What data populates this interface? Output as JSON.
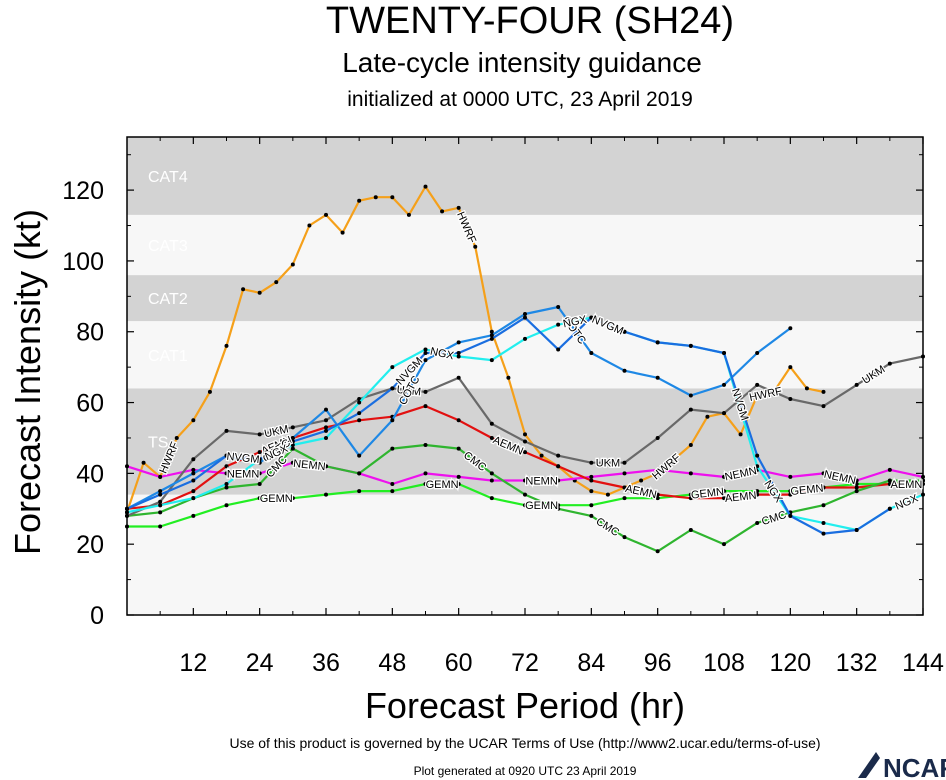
{
  "chart_data": {
    "type": "line",
    "title": "TWENTY-FOUR (SH24)",
    "subtitle": "Late-cycle intensity guidance",
    "subtitle2": "initialized at 0000 UTC, 23 April 2019",
    "xlabel": "Forecast Period (hr)",
    "ylabel": "Forecast Intensity (kt)",
    "xlim": [
      0,
      144
    ],
    "ylim": [
      0,
      135
    ],
    "xticks": [
      12,
      24,
      36,
      48,
      60,
      72,
      84,
      96,
      108,
      120,
      132,
      144
    ],
    "yticks": [
      0,
      20,
      40,
      60,
      80,
      100,
      120
    ],
    "bands": [
      {
        "label": "TS",
        "from": 34,
        "to": 64,
        "color": "#d3d3d3"
      },
      {
        "label": "CAT1",
        "from": 64,
        "to": 83,
        "color": "#f7f7f7"
      },
      {
        "label": "CAT2",
        "from": 83,
        "to": 96,
        "color": "#d3d3d3"
      },
      {
        "label": "CAT3",
        "from": 96,
        "to": 113,
        "color": "#f7f7f7"
      },
      {
        "label": "CAT4",
        "from": 113,
        "to": 135,
        "color": "#d3d3d3"
      }
    ],
    "below_band_color": "#f7f7f7",
    "series": [
      {
        "name": "HWRF",
        "color": "#f5a01a",
        "label_at": [
          3,
          21,
          33,
          39,
          53
        ],
        "x": [
          0,
          3,
          6,
          9,
          12,
          15,
          18,
          21,
          24,
          27,
          30,
          33,
          36,
          39,
          42,
          45,
          48,
          51,
          54,
          57,
          60,
          63,
          66,
          69,
          72,
          75,
          78,
          81,
          84,
          87,
          90,
          93,
          96,
          99,
          102,
          105,
          108,
          111,
          114,
          117,
          120,
          123,
          126
        ],
        "y": [
          29,
          43,
          39,
          50,
          55,
          63,
          76,
          92,
          91,
          94,
          99,
          110,
          113,
          108,
          117,
          118,
          118,
          113,
          121,
          114,
          115,
          104,
          80,
          67,
          51,
          45,
          42,
          38,
          35,
          34,
          36,
          38,
          40,
          44,
          48,
          56,
          57,
          51,
          62,
          63,
          70,
          64,
          63
        ]
      },
      {
        "name": "NEMN",
        "color": "#ee11ee",
        "label_at": [
          4,
          6,
          13,
          19,
          22,
          27,
          31
        ],
        "x": [
          0,
          6,
          12,
          18,
          24,
          30,
          36,
          42,
          48,
          54,
          60,
          66,
          72,
          78,
          84,
          90,
          96,
          102,
          108,
          114,
          120,
          126,
          132,
          138,
          144
        ],
        "y": [
          42,
          39,
          41,
          40,
          40,
          43,
          42,
          40,
          37,
          40,
          39,
          38,
          38,
          38,
          39,
          40,
          41,
          40,
          39,
          41,
          39,
          40,
          38,
          41,
          39
        ]
      },
      {
        "name": "GEMN",
        "color": "#22ee22",
        "label_at": [
          5,
          10,
          13,
          18,
          21,
          26,
          32
        ],
        "x": [
          0,
          6,
          12,
          18,
          24,
          30,
          36,
          42,
          48,
          54,
          60,
          66,
          72,
          78,
          84,
          90,
          96,
          102,
          108,
          114,
          120,
          126,
          132,
          138,
          144
        ],
        "y": [
          25,
          25,
          28,
          31,
          33,
          33,
          34,
          35,
          35,
          37,
          37,
          33,
          31,
          31,
          31,
          33,
          33,
          34,
          35,
          35,
          35,
          36,
          37,
          37,
          38
        ]
      },
      {
        "name": "AEMN",
        "color": "#e21010",
        "label_at": [
          5,
          12,
          16,
          19,
          24
        ],
        "x": [
          0,
          6,
          12,
          18,
          24,
          30,
          36,
          42,
          48,
          54,
          60,
          66,
          72,
          78,
          84,
          90,
          96,
          102,
          108,
          114,
          120,
          126,
          132,
          138,
          144
        ],
        "y": [
          30,
          31,
          35,
          42,
          46,
          50,
          53,
          55,
          56,
          59,
          55,
          50,
          46,
          42,
          38,
          36,
          34,
          33,
          33,
          34,
          34,
          36,
          36,
          37,
          37
        ]
      },
      {
        "name": "CMC",
        "color": "#2fb52f",
        "label_at": [
          5,
          11,
          15,
          20
        ],
        "x": [
          0,
          6,
          12,
          18,
          24,
          30,
          36,
          42,
          48,
          54,
          60,
          66,
          72,
          78,
          84,
          90,
          96,
          102,
          108,
          114,
          120,
          126,
          132,
          138,
          144
        ],
        "y": [
          28,
          29,
          33,
          36,
          37,
          47,
          42,
          40,
          47,
          48,
          47,
          40,
          34,
          30,
          28,
          22,
          18,
          24,
          20,
          26,
          29,
          31,
          35,
          38,
          38
        ]
      },
      {
        "name": "UKM",
        "color": "#696969",
        "label_at": [
          5,
          9,
          15,
          23
        ],
        "x": [
          0,
          6,
          12,
          18,
          24,
          30,
          36,
          42,
          48,
          54,
          60,
          66,
          72,
          78,
          84,
          90,
          96,
          102,
          108,
          114,
          120,
          126,
          132,
          138,
          144
        ],
        "y": [
          28,
          32,
          44,
          52,
          51,
          53,
          55,
          61,
          64,
          63,
          67,
          54,
          49,
          45,
          43,
          43,
          50,
          58,
          57,
          65,
          61,
          59,
          65,
          71,
          73
        ]
      },
      {
        "name": "COTC",
        "color": "#1e88e5",
        "label_at": [
          5,
          9,
          14,
          21
        ],
        "x": [
          0,
          6,
          12,
          18,
          24,
          30,
          36,
          42,
          48,
          54,
          60,
          66,
          72,
          78,
          84,
          90,
          96,
          102,
          108,
          114,
          120
        ],
        "y": [
          30,
          35,
          40,
          45,
          43,
          50,
          58,
          45,
          55,
          72,
          77,
          79,
          85,
          87,
          74,
          69,
          67,
          62,
          65,
          74,
          81
        ]
      },
      {
        "name": "NGX",
        "color": "#22eeee",
        "label_at": [
          5,
          10,
          14,
          20,
          24
        ],
        "x": [
          0,
          6,
          12,
          18,
          24,
          30,
          36,
          42,
          48,
          54,
          60,
          66,
          72,
          78,
          84,
          90,
          96,
          102,
          108,
          114,
          120,
          126,
          132,
          138,
          144
        ],
        "y": [
          29,
          31,
          33,
          37,
          44,
          48,
          50,
          60,
          70,
          75,
          73,
          72,
          78,
          82,
          84,
          80,
          77,
          76,
          74,
          42,
          28,
          26,
          24,
          30,
          34
        ]
      },
      {
        "name": "NVGM",
        "color": "#1a6ee0",
        "label_at": [
          4,
          9,
          15,
          19
        ],
        "x": [
          0,
          6,
          12,
          18,
          24,
          30,
          36,
          42,
          48,
          54,
          60,
          66,
          72,
          78,
          84,
          90,
          96,
          102,
          108,
          114,
          120,
          126,
          132,
          138
        ],
        "y": [
          30,
          34,
          38,
          45,
          44,
          49,
          52,
          57,
          64,
          74,
          74,
          78,
          84,
          75,
          84,
          80,
          77,
          76,
          74,
          45,
          28,
          23,
          24,
          30
        ]
      }
    ]
  }
}
